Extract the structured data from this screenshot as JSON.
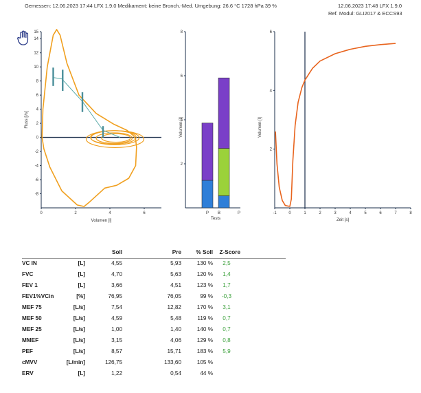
{
  "header": {
    "left": "Gemessen:   12.06.2023  17:44  LFX 1.9.0      Medikament:   keine Bronch.-Med.      Umgebung:   26.6 °C    1728 hPa    39 %",
    "right_line1": "12.06.2023  17:48   LFX 1.9.0",
    "right_line2": "Ref. Modul:   GLI2017 & ECCS93"
  },
  "colors": {
    "loop": "#f0a020",
    "pred_line": "#5aaaa8",
    "pred_bar": "#4a8f9a",
    "volume_curve": "#e8641e",
    "bar_purple": "#7a3fc8",
    "bar_blue": "#2f7fd8",
    "bar_green": "#9bd23a",
    "axis": "#1a2d4a",
    "zscore": "#3aa03a"
  },
  "hand_icon": "hand-pointer-icon",
  "chart_data": [
    {
      "type": "line",
      "name": "flow-volume",
      "xlabel": "Volumen [l]",
      "ylabel": "Fluss [l/s]",
      "xlim": [
        0,
        7
      ],
      "ylim": [
        -10,
        15
      ],
      "xticks": [
        "0",
        "2",
        "4",
        "6"
      ],
      "yticks": [
        "15",
        "14",
        "12",
        "10",
        "8",
        "6",
        "4",
        "2",
        "0",
        "-2",
        "-4",
        "-6",
        "-8"
      ],
      "pred_points": [
        [
          0.7,
          8.5
        ],
        [
          1.2,
          8.3
        ],
        [
          2.4,
          5.1
        ],
        [
          3.6,
          1.0
        ],
        [
          4.6,
          0
        ]
      ]
    },
    {
      "type": "bar",
      "name": "volumes",
      "xlabel": "Tests",
      "ylabel": "Volumen [l]",
      "ylim": [
        0,
        8
      ],
      "yticks": [
        "8",
        "6",
        "4",
        "2"
      ],
      "xticks": [
        "P",
        "B",
        "P"
      ],
      "categories": [
        "P",
        "B"
      ],
      "series": [
        {
          "values": [
            1.25,
            0.55
          ]
        },
        {
          "values": [
            0,
            2.15
          ]
        },
        {
          "values": [
            2.6,
            3.2
          ]
        }
      ],
      "totals": [
        3.85,
        5.9
      ]
    },
    {
      "type": "line",
      "name": "volume-time",
      "xlabel": "Zeit [s]",
      "ylabel": "Volumen [l]",
      "xlim": [
        -1,
        8
      ],
      "ylim": [
        0,
        6
      ],
      "xticks": [
        "-1",
        "0",
        "1",
        "2",
        "3",
        "4",
        "5",
        "6",
        "7",
        "8"
      ],
      "yticks": [
        "6",
        "4",
        "2"
      ],
      "marker_x": 1,
      "points": [
        [
          -0.95,
          2.6
        ],
        [
          -0.85,
          1.5
        ],
        [
          -0.7,
          0.7
        ],
        [
          -0.5,
          0.25
        ],
        [
          -0.3,
          0.08
        ],
        [
          0,
          0.05
        ],
        [
          0.1,
          0.3
        ],
        [
          0.2,
          1.6
        ],
        [
          0.35,
          2.8
        ],
        [
          0.55,
          3.6
        ],
        [
          0.8,
          4.1
        ],
        [
          1.0,
          4.35
        ],
        [
          1.5,
          4.75
        ],
        [
          2,
          5.0
        ],
        [
          3,
          5.25
        ],
        [
          4,
          5.4
        ],
        [
          5,
          5.5
        ],
        [
          6,
          5.56
        ],
        [
          7,
          5.6
        ]
      ]
    }
  ],
  "table": {
    "headers": {
      "soll": "Soll",
      "pre": "Pre",
      "pct": "% Soll",
      "z": "Z-Score"
    },
    "rows": [
      {
        "name": "VC IN",
        "unit": "[L]",
        "soll": "4,55",
        "pre": "5,93",
        "pct": "130 %",
        "z": "2,5"
      },
      {
        "name": "FVC",
        "unit": "[L]",
        "soll": "4,70",
        "pre": "5,63",
        "pct": "120 %",
        "z": "1,4"
      },
      {
        "name": "FEV 1",
        "unit": "[L]",
        "soll": "3,66",
        "pre": "4,51",
        "pct": "123 %",
        "z": "1,7"
      },
      {
        "name": "FEV1%VCin",
        "unit": "[%]",
        "soll": "76,95",
        "pre": "76,05",
        "pct": "99 %",
        "z": "-0,3"
      },
      {
        "name": "MEF 75",
        "unit": "[L/s]",
        "soll": "7,54",
        "pre": "12,82",
        "pct": "170 %",
        "z": "3,1"
      },
      {
        "name": "MEF 50",
        "unit": "[L/s]",
        "soll": "4,59",
        "pre": "5,48",
        "pct": "119 %",
        "z": "0,7"
      },
      {
        "name": "MEF 25",
        "unit": "[L/s]",
        "soll": "1,00",
        "pre": "1,40",
        "pct": "140 %",
        "z": "0,7"
      },
      {
        "name": "MMEF",
        "unit": "[L/s]",
        "soll": "3,15",
        "pre": "4,06",
        "pct": "129 %",
        "z": "0,8"
      },
      {
        "name": "PEF",
        "unit": "[L/s]",
        "soll": "8,57",
        "pre": "15,71",
        "pct": "183 %",
        "z": "5,9"
      },
      {
        "name": "cMVV",
        "unit": "[L/min]",
        "soll": "126,75",
        "pre": "133,60",
        "pct": "105 %",
        "z": ""
      },
      {
        "name": "ERV",
        "unit": "[L]",
        "soll": "1,22",
        "pre": "0,54",
        "pct": "44 %",
        "z": ""
      }
    ]
  }
}
